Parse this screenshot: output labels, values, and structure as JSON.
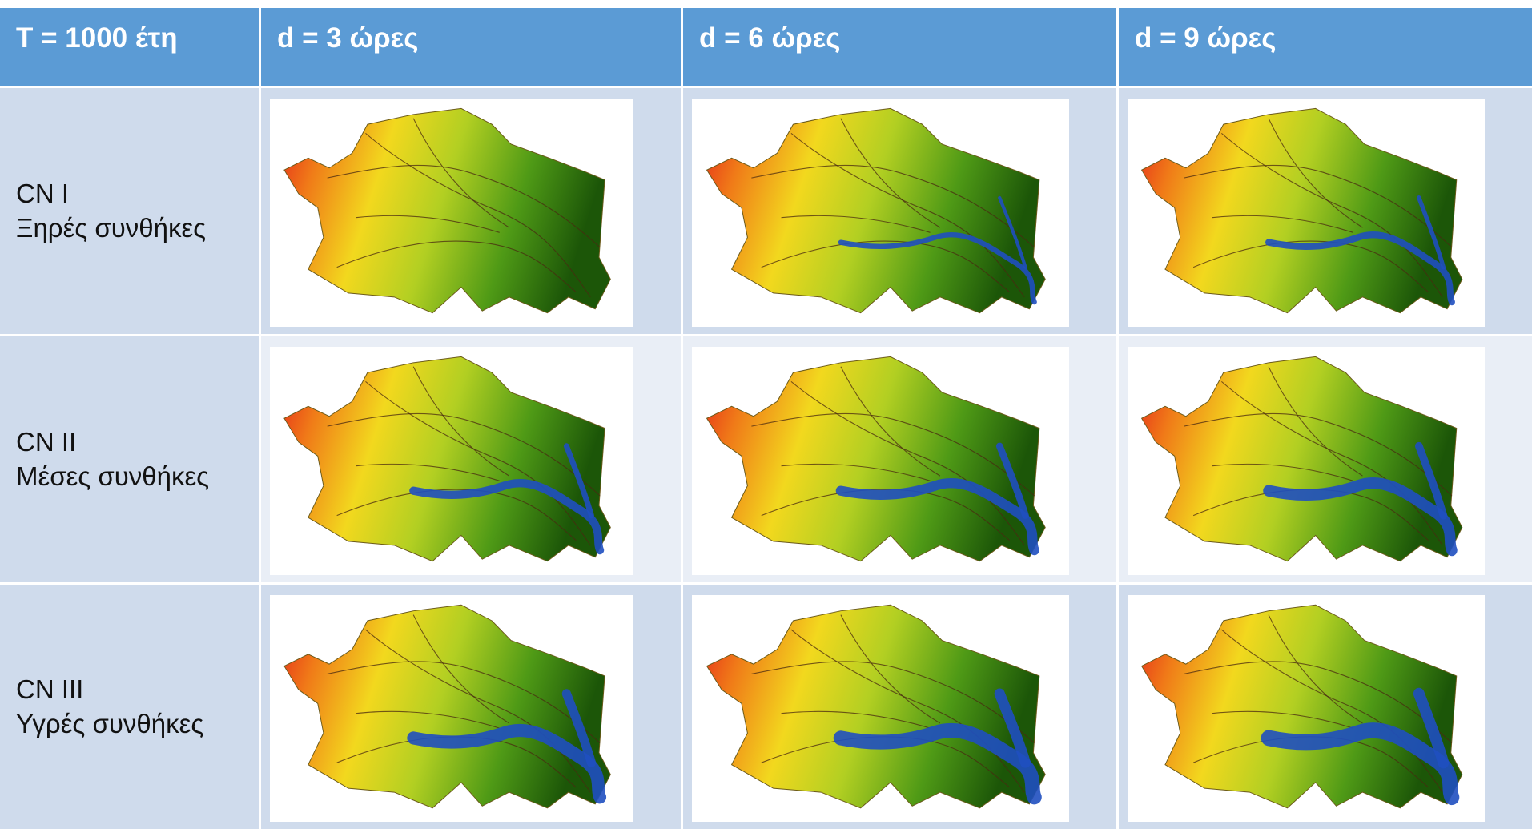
{
  "header": {
    "cells": [
      "T = 1000 έτη",
      "d = 3 ώρες",
      "d = 6 ώρες",
      "d = 9 ώρες"
    ]
  },
  "rows": [
    {
      "label": "CN I",
      "description": "Ξηρές συνθήκες"
    },
    {
      "label": "CN II",
      "description": "Μέσες συνθήκες"
    },
    {
      "label": "CN III",
      "description": "Υγρές συνθήκες"
    }
  ]
}
